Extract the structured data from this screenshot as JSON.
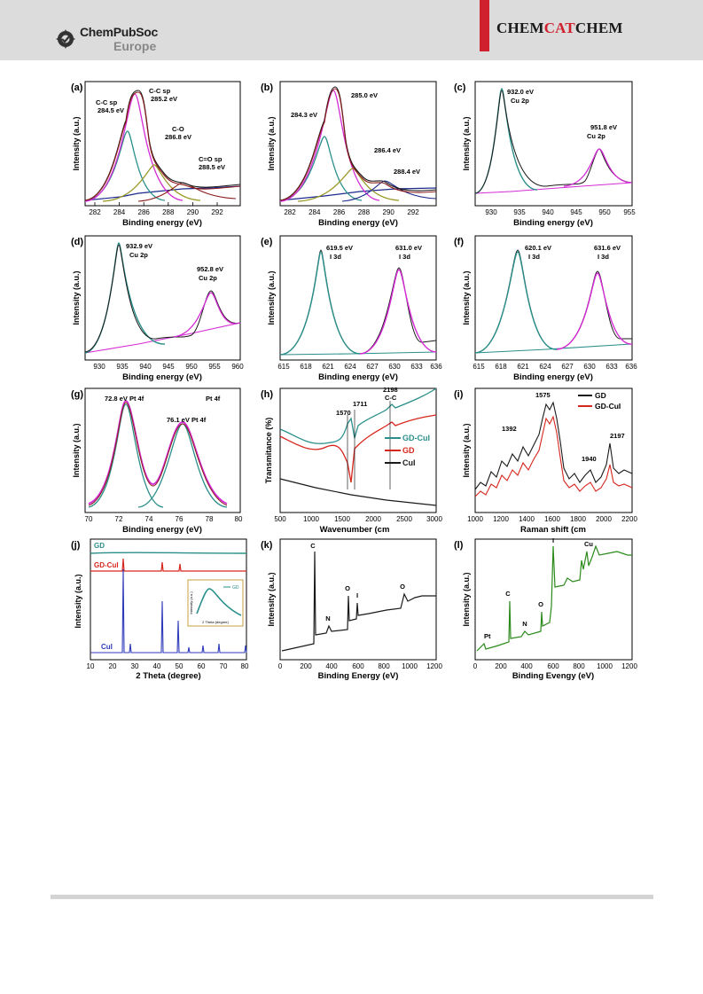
{
  "header": {
    "publisher_top": "ChemPubSoc",
    "publisher_bottom": "Europe",
    "journal_a": "CHEM",
    "journal_b": "CAT",
    "journal_c": "CHEM"
  },
  "panels": {
    "a": {
      "letter": "(a)",
      "xlabel": "Binding energy (eV)",
      "ylabel": "Intensity (a.u.)",
      "ticks": [
        "282",
        "284",
        "286",
        "288",
        "290",
        "292"
      ],
      "ann1": "C-C sp",
      "ann1b": "284.5 eV",
      "ann2": "C-C sp",
      "ann2b": "285.2 eV",
      "ann3": "C-O",
      "ann3b": "286.8 eV",
      "ann4": "C=O sp",
      "ann4b": "288.5 eV"
    },
    "b": {
      "letter": "(b)",
      "xlabel": "Binding energy (eV)",
      "ylabel": "Intensity (a.u.)",
      "ticks": [
        "282",
        "284",
        "286",
        "288",
        "290",
        "292"
      ],
      "ann1": "285.0 eV",
      "ann2": "284.3 eV",
      "ann3": "286.4 eV",
      "ann4": "288.4 eV"
    },
    "c": {
      "letter": "(c)",
      "xlabel": "Binding energy (eV)",
      "ylabel": "Intensity (a.u.)",
      "ticks": [
        "930",
        "935",
        "940",
        "945",
        "950",
        "955"
      ],
      "ann1": "932.0 eV",
      "ann1b": "Cu 2p",
      "ann2": "951.8 eV",
      "ann2b": "Cu 2p"
    },
    "d": {
      "letter": "(d)",
      "xlabel": "Binding energy (eV)",
      "ylabel": "Intensity (a.u.)",
      "ticks": [
        "930",
        "935",
        "940",
        "945",
        "950",
        "955",
        "960"
      ],
      "ann1": "932.9 eV",
      "ann1b": "Cu 2p",
      "ann2": "952.8 eV",
      "ann2b": "Cu 2p"
    },
    "e": {
      "letter": "(e)",
      "xlabel": "Binding energy (eV)",
      "ylabel": "Intensity (a.u.)",
      "ticks": [
        "615",
        "618",
        "621",
        "624",
        "627",
        "630",
        "633",
        "636"
      ],
      "ann1": "619.5 eV",
      "ann1b": "I 3d",
      "ann2": "631.0 eV",
      "ann2b": "I 3d"
    },
    "f": {
      "letter": "(f)",
      "xlabel": "Binding energy (eV)",
      "ylabel": "Intensity (a.u.)",
      "ticks": [
        "615",
        "618",
        "621",
        "624",
        "627",
        "630",
        "633",
        "636"
      ],
      "ann1": "620.1 eV",
      "ann1b": "I 3d",
      "ann2": "631.6 eV",
      "ann2b": "I 3d"
    },
    "g": {
      "letter": "(g)",
      "xlabel": "Binding energy (eV)",
      "ylabel": "Intensity (a.u.)",
      "ticks": [
        "70",
        "72",
        "74",
        "76",
        "78",
        "80"
      ],
      "ann1": "72.8 eV Pt 4f",
      "ann2": "Pt 4f",
      "ann3": "76.1 eV  Pt 4f"
    },
    "h": {
      "letter": "(h)",
      "xlabel": "Wavenumber (cm",
      "ylabel": "Transmitance (%)",
      "ticks": [
        "500",
        "1000",
        "1500",
        "2000",
        "2500",
        "3000"
      ],
      "ann1": "1570",
      "ann2": "1711",
      "ann3": "2198",
      "ann3b": "C-C",
      "legend": [
        "GD-CuI",
        "GD",
        "CuI"
      ]
    },
    "i": {
      "letter": "(i)",
      "xlabel": "Raman shift (cm",
      "ylabel": "Intensity (a.u.)",
      "ticks": [
        "1000",
        "1200",
        "1400",
        "1600",
        "1800",
        "2000",
        "2200"
      ],
      "ann1": "1575",
      "ann2": "1392",
      "ann3": "1940",
      "ann4": "2197",
      "legend": [
        "GD",
        "GD-CuI"
      ]
    },
    "j": {
      "letter": "(j)",
      "xlabel": "2 Theta (degree)",
      "ylabel": "Intensity (a.u.)",
      "ticks": [
        "10",
        "20",
        "30",
        "40",
        "50",
        "60",
        "70",
        "80"
      ],
      "lab_gd": "GD",
      "lab_gdcui": "GD-CuI",
      "lab_cui": "CuI",
      "inset_legend": "GD",
      "inset_ylabel": "Intensity (a.u.)",
      "inset_xlabel": "2 Theta (degree)"
    },
    "k": {
      "letter": "(k)",
      "xlabel": "Binding Energy (eV)",
      "ylabel": "Intensity (a.u.)",
      "ticks": [
        "0",
        "200",
        "400",
        "600",
        "800",
        "1000",
        "1200"
      ],
      "ann_c": "C",
      "ann_n": "N",
      "ann_o": "O",
      "ann_i": "I",
      "ann_o2": "O"
    },
    "l": {
      "letter": "(l)",
      "xlabel": "Binding Evengy (eV)",
      "ylabel": "Intensity (a.u.)",
      "ticks": [
        "0",
        "200",
        "400",
        "600",
        "800",
        "1000",
        "1200"
      ],
      "ann_pt": "Pt",
      "ann_c": "C",
      "ann_n": "N",
      "ann_o": "O",
      "ann_i": "I",
      "ann_cu": "Cu"
    }
  },
  "colors": {
    "raw": "#1a1a1a",
    "envelope": "#8b1a1a",
    "magenta": "#d42bd4",
    "teal": "#2a8f8a",
    "olive": "#9a9a2a",
    "navy": "#1c2a8c",
    "red": "#d7261e",
    "green": "#2a8a1a",
    "blue": "#2d39b8"
  }
}
